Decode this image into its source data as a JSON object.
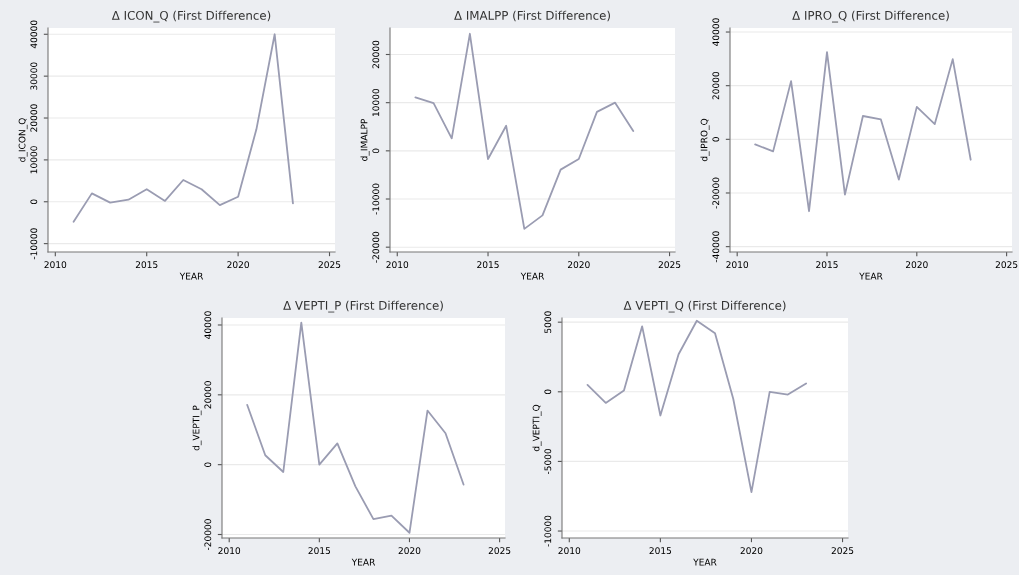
{
  "chart_data": [
    {
      "type": "line",
      "title": "Δ ICON_Q (First Difference)",
      "xlabel": "YEAR",
      "ylabel": "d_ICON_Q",
      "x": [
        2011,
        2012,
        2013,
        2014,
        2015,
        2016,
        2017,
        2018,
        2019,
        2020,
        2021,
        2022,
        2023
      ],
      "series": [
        {
          "color": "#9a9cb2",
          "values": [
            -4800,
            2000,
            -200,
            500,
            3000,
            200,
            5200,
            3000,
            -800,
            1200,
            17300,
            40000,
            -400
          ]
        }
      ],
      "xlim": [
        2009.6,
        2025.3
      ],
      "ylim": [
        -12000,
        41500
      ],
      "xticks": [
        2010,
        2015,
        2020,
        2025
      ],
      "yticks": [
        -10000,
        0,
        10000,
        20000,
        30000,
        40000
      ],
      "grid": "y"
    },
    {
      "type": "line",
      "title": "Δ IMALPP (First Difference)",
      "xlabel": "YEAR",
      "ylabel": "d_IMALPP",
      "x": [
        2011,
        2012,
        2013,
        2014,
        2015,
        2016,
        2017,
        2018,
        2019,
        2020,
        2021,
        2022,
        2023
      ],
      "series": [
        {
          "color": "#9a9cb2",
          "values": [
            11100,
            9900,
            2600,
            24300,
            -1700,
            5200,
            -16200,
            -13400,
            -3900,
            -1700,
            8100,
            10000,
            4100
          ]
        }
      ],
      "xlim": [
        2009.6,
        2025.3
      ],
      "ylim": [
        -21000,
        25500
      ],
      "xticks": [
        2010,
        2015,
        2020,
        2025
      ],
      "yticks": [
        -20000,
        -10000,
        0,
        10000,
        20000
      ],
      "grid": "y"
    },
    {
      "type": "line",
      "title": "Δ IPRO_Q (First Difference)",
      "xlabel": "YEAR",
      "ylabel": "d_IPRO_Q",
      "x": [
        2011,
        2012,
        2013,
        2014,
        2015,
        2016,
        2017,
        2018,
        2019,
        2020,
        2021,
        2022,
        2023
      ],
      "series": [
        {
          "color": "#9a9cb2",
          "values": [
            -1900,
            -4500,
            21700,
            -26800,
            32500,
            -20600,
            8700,
            7400,
            -15000,
            12100,
            5700,
            29900,
            -7600
          ]
        }
      ],
      "xlim": [
        2009.6,
        2025.3
      ],
      "ylim": [
        -42000,
        41500
      ],
      "xticks": [
        2010,
        2015,
        2020,
        2025
      ],
      "yticks": [
        -40000,
        -20000,
        0,
        20000,
        40000
      ],
      "grid": "y"
    },
    {
      "type": "line",
      "title": "Δ VEPTI_P (First Difference)",
      "xlabel": "YEAR",
      "ylabel": "d_VEPTI_P",
      "x": [
        2011,
        2012,
        2013,
        2014,
        2015,
        2016,
        2017,
        2018,
        2019,
        2020,
        2021,
        2022,
        2023
      ],
      "series": [
        {
          "color": "#9a9cb2",
          "values": [
            17100,
            2700,
            -2100,
            40700,
            0,
            6100,
            -6200,
            -15600,
            -14600,
            -19500,
            15500,
            9000,
            -5700
          ]
        }
      ],
      "xlim": [
        2009.6,
        2025.3
      ],
      "ylim": [
        -21000,
        42000
      ],
      "xticks": [
        2010,
        2015,
        2020,
        2025
      ],
      "yticks": [
        -20000,
        0,
        20000,
        40000
      ],
      "grid": "y"
    },
    {
      "type": "line",
      "title": "Δ VEPTI_Q (First Difference)",
      "xlabel": "YEAR",
      "ylabel": "d_VEPTI_Q",
      "x": [
        2011,
        2012,
        2013,
        2014,
        2015,
        2016,
        2017,
        2018,
        2019,
        2020,
        2021,
        2022,
        2023
      ],
      "series": [
        {
          "color": "#9a9cb2",
          "values": [
            500,
            -800,
            100,
            4700,
            -1700,
            2700,
            5100,
            4200,
            -500,
            -7200,
            0,
            -200,
            600
          ]
        }
      ],
      "xlim": [
        2009.6,
        2025.3
      ],
      "ylim": [
        -10500,
        5300
      ],
      "xticks": [
        2010,
        2015,
        2020,
        2025
      ],
      "yticks": [
        -10000,
        -5000,
        0,
        5000
      ],
      "grid": "y"
    }
  ]
}
